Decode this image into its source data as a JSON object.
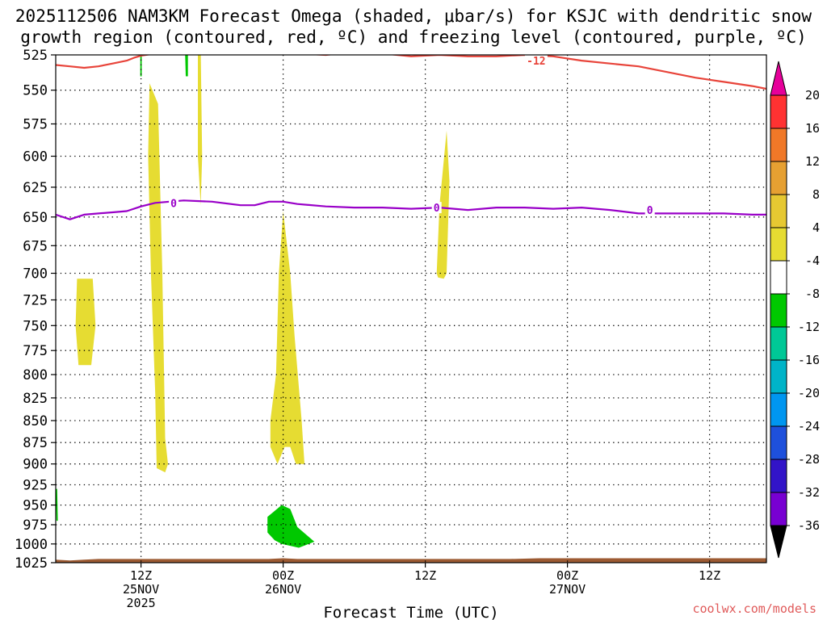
{
  "header": {
    "title_line1": "2025112506 NAM3KM Forecast Omega (shaded, μbar/s) for KSJC with dendritic snow",
    "title_line2": "growth region (contoured, red, ºC) and freezing level (contoured, purple, ºC)"
  },
  "footer": {
    "credit": "coolwx.com/models"
  },
  "colors": {
    "dendritic": "#e8443a",
    "freezing": "#9900c8",
    "terrain": "#9c5a32",
    "upward_shading": "#e6dc32",
    "downward_shading": "#00c800",
    "downward_dark": "#009600",
    "grid": "#000000"
  },
  "chart_data": {
    "type": "heatmap",
    "title": "2025112506 NAM3KM Forecast Omega (shaded, μbar/s) for KSJC with dendritic snow growth region (contoured, red, ºC) and freezing level (contoured, purple, ºC)",
    "xlabel": "Forecast Time (UTC)",
    "ylabel": "",
    "x_range_hours": [
      6,
      56
    ],
    "y_range_mb": [
      1025,
      525
    ],
    "y_scale": "log",
    "grid": true,
    "x_ticks": [
      {
        "hour": 12,
        "line1": "12Z",
        "line2": "25NOV",
        "line3": "2025"
      },
      {
        "hour": 22,
        "line1": "00Z",
        "line2": "26NOV",
        "line3": ""
      },
      {
        "hour": 32,
        "line1": "12Z",
        "line2": "",
        "line3": ""
      },
      {
        "hour": 42,
        "line1": "00Z",
        "line2": "27NOV",
        "line3": ""
      },
      {
        "hour": 52,
        "line1": "12Z",
        "line2": "",
        "line3": ""
      }
    ],
    "y_ticks": [
      525,
      550,
      575,
      600,
      625,
      650,
      675,
      700,
      725,
      750,
      775,
      800,
      825,
      850,
      875,
      900,
      925,
      950,
      975,
      1000,
      1025
    ],
    "colorbar": {
      "labels": [
        "20",
        "16",
        "12",
        "8",
        "4",
        "-4",
        "-8",
        "-12",
        "-16",
        "-20",
        "-24",
        "-28",
        "-32",
        "-36"
      ],
      "colors": [
        "#ffffff",
        "#ff3232",
        "#f07828",
        "#e6a032",
        "#e6c832",
        "#e6dc32",
        "#ffffff",
        "#00c800",
        "#00c896",
        "#00b4c8",
        "#0096f0",
        "#1e50dc",
        "#3214c8",
        "#7800d2",
        "#9600c8",
        "#a0a0a0"
      ],
      "top_arrow_color": "#e6009a",
      "bottom_arrow_color": "#000000"
    },
    "series": [
      {
        "name": "-12",
        "color": "#e8443a",
        "x": [
          6,
          7,
          8,
          9,
          10,
          11,
          11.5,
          12,
          13,
          14,
          15,
          17,
          19,
          21,
          23,
          25,
          27,
          29,
          31,
          33,
          35,
          37,
          39,
          41,
          43,
          45,
          47,
          49,
          51,
          53,
          55,
          56
        ],
        "y": [
          532,
          533,
          534,
          533,
          531,
          529,
          527,
          525.5,
          524,
          521,
          518,
          517,
          519,
          521,
          524,
          525,
          523,
          524,
          526,
          525,
          526,
          526,
          525,
          526,
          529,
          531,
          533,
          537,
          541,
          544,
          547,
          549
        ]
      },
      {
        "name": "0",
        "color": "#9900c8",
        "x": [
          6,
          7,
          8,
          9,
          10,
          11,
          12,
          13,
          14,
          15,
          17,
          19,
          20,
          21,
          22,
          23,
          25,
          27,
          29,
          31,
          33,
          35,
          37,
          39,
          41,
          43,
          45,
          47,
          49,
          51,
          53,
          55,
          56
        ],
        "y": [
          648,
          652,
          648,
          647,
          646,
          645,
          641,
          638,
          637,
          636,
          637,
          640,
          640,
          637,
          637,
          639,
          641,
          642,
          642,
          643,
          642,
          644,
          642,
          642,
          643,
          642,
          644,
          647,
          647,
          647,
          647,
          648,
          648
        ]
      }
    ],
    "contour_labels": [
      {
        "text": "-12",
        "hour": 39.8,
        "mb": 529,
        "series": "-12"
      },
      {
        "text": "0",
        "hour": 14.3,
        "mb": 638,
        "series": "0"
      },
      {
        "text": "0",
        "hour": 32.8,
        "mb": 642,
        "series": "0"
      },
      {
        "text": "0",
        "hour": 47.8,
        "mb": 644,
        "series": "0"
      }
    ],
    "shaded_regions": [
      {
        "omega_min": 4,
        "omega_max": 8,
        "points": [
          [
            7.5,
            705
          ],
          [
            8.6,
            705
          ],
          [
            8.8,
            750
          ],
          [
            8.5,
            790
          ],
          [
            7.6,
            790
          ],
          [
            7.4,
            750
          ]
        ]
      },
      {
        "omega_min": 4,
        "omega_max": 8,
        "points": [
          [
            12.6,
            545
          ],
          [
            13.2,
            560
          ],
          [
            13.5,
            700
          ],
          [
            13.7,
            870
          ],
          [
            13.9,
            900
          ],
          [
            13.7,
            910
          ],
          [
            13.1,
            905
          ],
          [
            13.0,
            820
          ],
          [
            12.7,
            700
          ],
          [
            12.5,
            600
          ]
        ]
      },
      {
        "omega_min": 4,
        "omega_max": 8,
        "points": [
          [
            16.0,
            520
          ],
          [
            16.2,
            520
          ],
          [
            16.3,
            600
          ],
          [
            16.2,
            640
          ],
          [
            16.0,
            600
          ]
        ]
      },
      {
        "omega_min": 4,
        "omega_max": 8,
        "points": [
          [
            22.0,
            645
          ],
          [
            22.5,
            700
          ],
          [
            22.8,
            760
          ],
          [
            23.3,
            850
          ],
          [
            23.5,
            900
          ],
          [
            22.9,
            900
          ],
          [
            22.5,
            880
          ],
          [
            22.1,
            880
          ],
          [
            21.6,
            900
          ],
          [
            21.1,
            880
          ],
          [
            21.1,
            850
          ],
          [
            21.5,
            800
          ],
          [
            21.7,
            700
          ]
        ]
      },
      {
        "omega_min": 4,
        "omega_max": 8,
        "points": [
          [
            32.8,
            700
          ],
          [
            33.0,
            640
          ],
          [
            33.5,
            580
          ],
          [
            33.7,
            620
          ],
          [
            33.5,
            700
          ],
          [
            33.3,
            705
          ],
          [
            32.9,
            704
          ]
        ]
      },
      {
        "omega_min": -8,
        "omega_max": -4,
        "points": [
          [
            20.9,
            965
          ],
          [
            21.9,
            950
          ],
          [
            22.5,
            955
          ],
          [
            23.0,
            978
          ],
          [
            24.2,
            997
          ],
          [
            23.1,
            1005
          ],
          [
            21.9,
            1000
          ],
          [
            21.4,
            995
          ],
          [
            20.9,
            985
          ]
        ]
      },
      {
        "omega_min": -8,
        "omega_max": -4,
        "points": [
          [
            6.0,
            930
          ],
          [
            6.1,
            930
          ],
          [
            6.15,
            970
          ],
          [
            6.05,
            970
          ]
        ]
      },
      {
        "omega_min": -8,
        "omega_max": -4,
        "points": [
          [
            15.1,
            524
          ],
          [
            15.3,
            524
          ],
          [
            15.3,
            540
          ],
          [
            15.15,
            540
          ]
        ]
      },
      {
        "omega_min": -8,
        "omega_max": -4,
        "points": [
          [
            11.95,
            520
          ],
          [
            12.05,
            520
          ],
          [
            12.05,
            540
          ],
          [
            11.95,
            540
          ]
        ]
      }
    ],
    "terrain": {
      "x": [
        6,
        7,
        8,
        9,
        11,
        14,
        18,
        21,
        22,
        23,
        26,
        30,
        34,
        38,
        40,
        42,
        46,
        50,
        54,
        56
      ],
      "surface_mb": [
        1021,
        1022,
        1021,
        1020,
        1020,
        1020,
        1020,
        1020,
        1019,
        1020,
        1020,
        1020,
        1020,
        1020,
        1019,
        1019,
        1019,
        1019,
        1019,
        1019
      ]
    }
  }
}
